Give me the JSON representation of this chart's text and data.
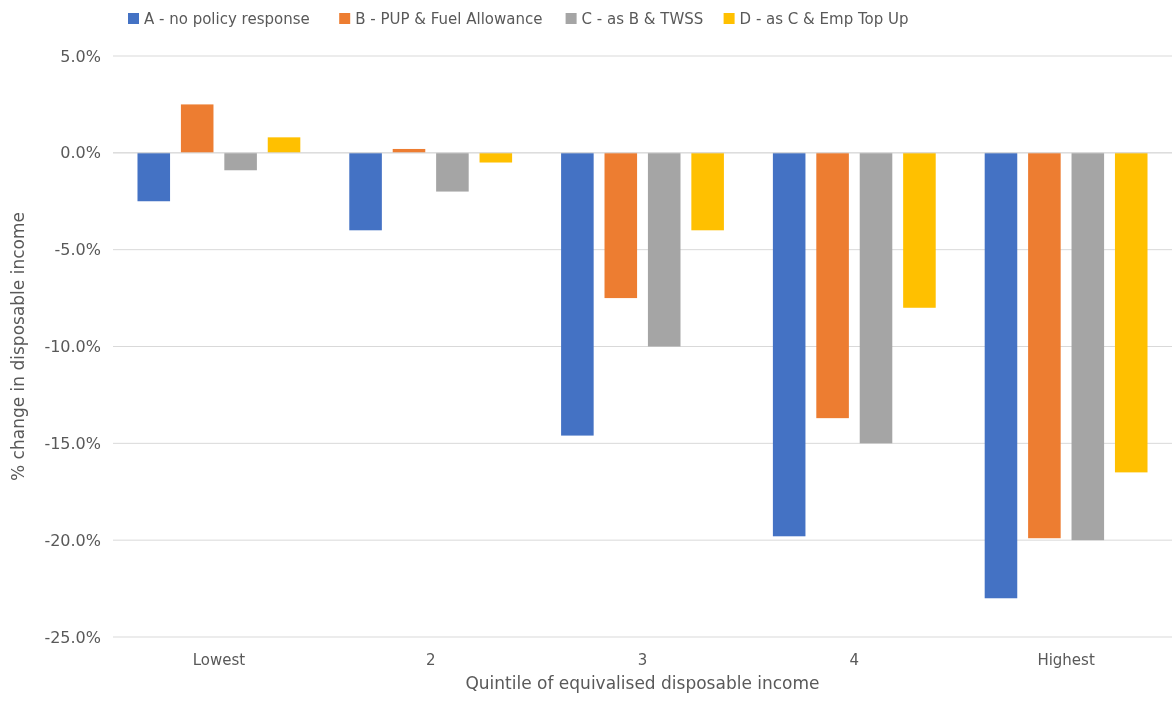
{
  "chart_data": {
    "type": "bar",
    "xlabel": "Quintile of equivalised disposable income",
    "ylabel": "% change in disposable income",
    "categories": [
      "Lowest",
      "2",
      "3",
      "4",
      "Highest"
    ],
    "series": [
      {
        "name": "A - no policy response",
        "color": "#4472c4",
        "values": [
          -2.5,
          -4.0,
          -14.6,
          -19.8,
          -23.0
        ]
      },
      {
        "name": "B - PUP & Fuel Allowance",
        "color": "#ed7d31",
        "values": [
          2.5,
          0.2,
          -7.5,
          -13.7,
          -19.9
        ]
      },
      {
        "name": "C - as B & TWSS",
        "color": "#a5a5a5",
        "values": [
          -0.9,
          -2.0,
          -10.0,
          -15.0,
          -20.0
        ]
      },
      {
        "name": "D - as C & Emp Top Up",
        "color": "#ffc000",
        "values": [
          0.8,
          -0.5,
          -4.0,
          -8.0,
          -16.5
        ]
      }
    ],
    "ylim": [
      -25,
      5
    ],
    "yticks": [
      {
        "value": 5,
        "label": "5.0%"
      },
      {
        "value": 0,
        "label": "0.0%"
      },
      {
        "value": -5,
        "label": "-5.0%"
      },
      {
        "value": -10,
        "label": "-10.0%"
      },
      {
        "value": -15,
        "label": "-15.0%"
      },
      {
        "value": -20,
        "label": "-20.0%"
      },
      {
        "value": -25,
        "label": "-25.0%"
      }
    ],
    "grid": "y",
    "legend": "top"
  }
}
